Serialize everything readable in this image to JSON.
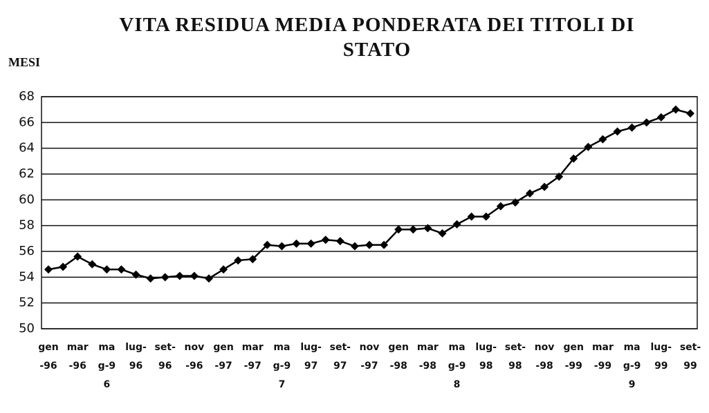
{
  "chart_data": {
    "type": "line",
    "title": "VITA RESIDUA MEDIA PONDERATA DEI TITOLI DI STATO",
    "y_label": "MESI",
    "categories": [
      "gen-96",
      null,
      "mar-96",
      null,
      "mag-96",
      null,
      "lug-96",
      null,
      "set-96",
      null,
      "nov-96",
      null,
      "gen-97",
      null,
      "mar-97",
      null,
      "mag-97",
      null,
      "lug-97",
      null,
      "set-97",
      null,
      "nov-97",
      null,
      "gen-98",
      null,
      "mar-98",
      null,
      "mag-98",
      null,
      "lug-98",
      null,
      "set-98",
      null,
      "nov-98",
      null,
      "gen-99",
      null,
      "mar-99",
      null,
      "mag-99",
      null,
      "lug-99",
      null,
      "set-99"
    ],
    "series": [
      {
        "name": "Vita residua",
        "color": "#000000",
        "values": [
          54.6,
          54.8,
          55.6,
          55.0,
          54.6,
          54.6,
          54.2,
          53.9,
          54.0,
          54.1,
          54.1,
          53.9,
          54.6,
          55.3,
          55.4,
          56.5,
          56.4,
          56.6,
          56.6,
          56.9,
          56.8,
          56.4,
          56.5,
          56.5,
          57.7,
          57.7,
          57.8,
          57.4,
          58.1,
          58.7,
          58.7,
          59.5,
          59.8,
          60.5,
          61.0,
          61.8,
          63.2,
          64.1,
          64.7,
          65.3,
          65.6,
          66.0,
          66.4,
          67.0,
          66.7
        ]
      }
    ],
    "ylim": [
      50,
      68
    ],
    "yticks": [
      50,
      52,
      54,
      56,
      58,
      60,
      62,
      64,
      66,
      68
    ],
    "grid": true
  }
}
